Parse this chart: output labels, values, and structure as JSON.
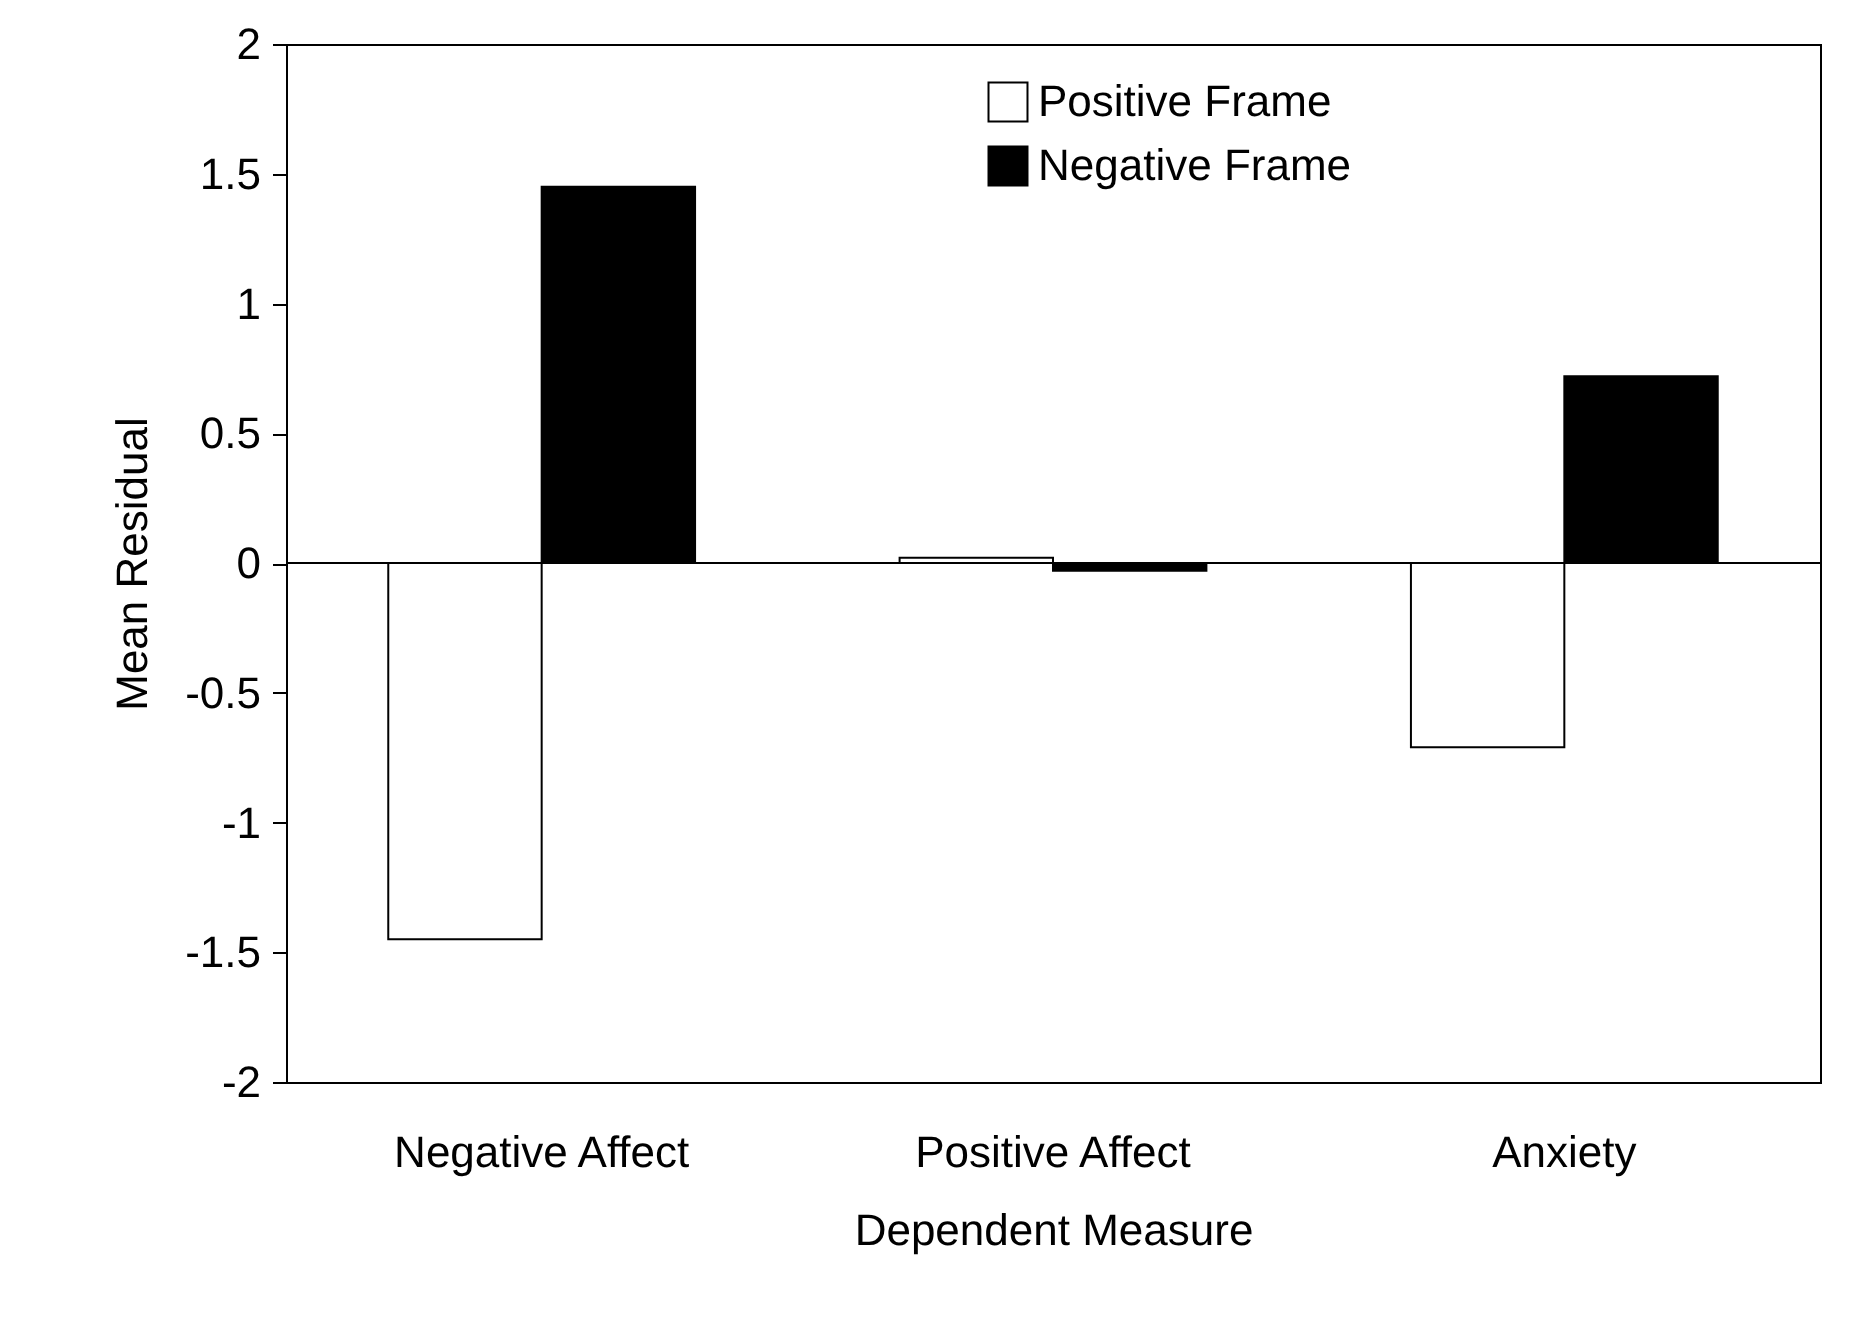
{
  "chart_data": {
    "type": "bar",
    "xlabel": "Dependent Measure",
    "ylabel": "Mean Residual",
    "categories": [
      "Negative Affect",
      "Positive Affect",
      "Anxiety"
    ],
    "series": [
      {
        "name": "Positive Frame",
        "color": "#ffffff",
        "values": [
          -1.45,
          0.02,
          -0.71
        ]
      },
      {
        "name": "Negative Frame",
        "color": "#000000",
        "values": [
          1.45,
          -0.03,
          0.72
        ]
      }
    ],
    "ylim": [
      -2,
      2
    ],
    "yticks": [
      -2,
      -1.5,
      -1,
      -0.5,
      0,
      0.5,
      1,
      1.5,
      2
    ],
    "legend": "top right"
  }
}
